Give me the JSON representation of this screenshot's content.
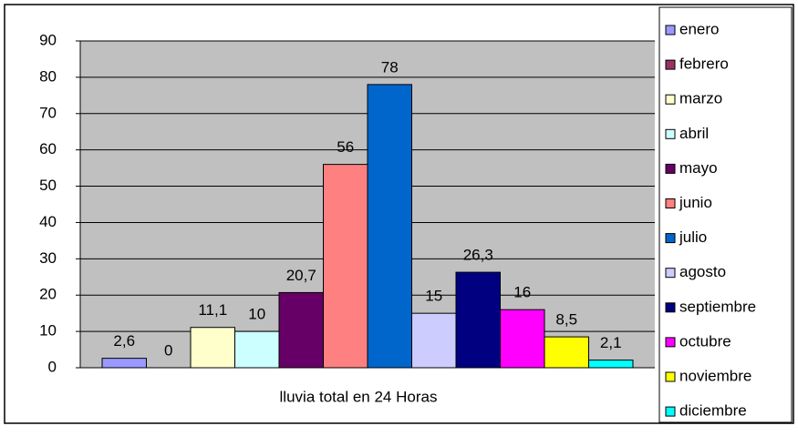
{
  "chart_data": {
    "type": "bar",
    "categories": [
      "lluvia total en 24 Horas"
    ],
    "series": [
      {
        "name": "enero",
        "color": "#9999ff",
        "values": [
          2.6
        ],
        "value_labels": [
          "2,6"
        ]
      },
      {
        "name": "febrero",
        "color": "#993366",
        "values": [
          0
        ]
      },
      {
        "name": "marzo",
        "color": "#ffffcc",
        "values": [
          11.1
        ],
        "value_labels": [
          "11,1"
        ]
      },
      {
        "name": "abril",
        "color": "#ccffff",
        "values": [
          10
        ]
      },
      {
        "name": "mayo",
        "color": "#660066",
        "values": [
          20.7
        ],
        "value_labels": [
          "20,7"
        ]
      },
      {
        "name": "junio",
        "color": "#ff8080",
        "values": [
          56
        ]
      },
      {
        "name": "julio",
        "color": "#0066cc",
        "values": [
          78
        ]
      },
      {
        "name": "agosto",
        "color": "#ccccff",
        "values": [
          15
        ]
      },
      {
        "name": "septiembre",
        "color": "#000080",
        "values": [
          26.3
        ],
        "value_labels": [
          "26,3"
        ]
      },
      {
        "name": "octubre",
        "color": "#ff00ff",
        "values": [
          16
        ]
      },
      {
        "name": "noviembre",
        "color": "#ffff00",
        "values": [
          8.5
        ],
        "value_labels": [
          "8,5"
        ]
      },
      {
        "name": "diciembre",
        "color": "#00ffff",
        "values": [
          2.1
        ],
        "value_labels": [
          "2,1"
        ]
      }
    ],
    "ylim": [
      0,
      90
    ],
    "yticks": [
      0,
      10,
      20,
      30,
      40,
      50,
      60,
      70,
      80,
      90
    ],
    "grid": true,
    "legend": "right"
  }
}
